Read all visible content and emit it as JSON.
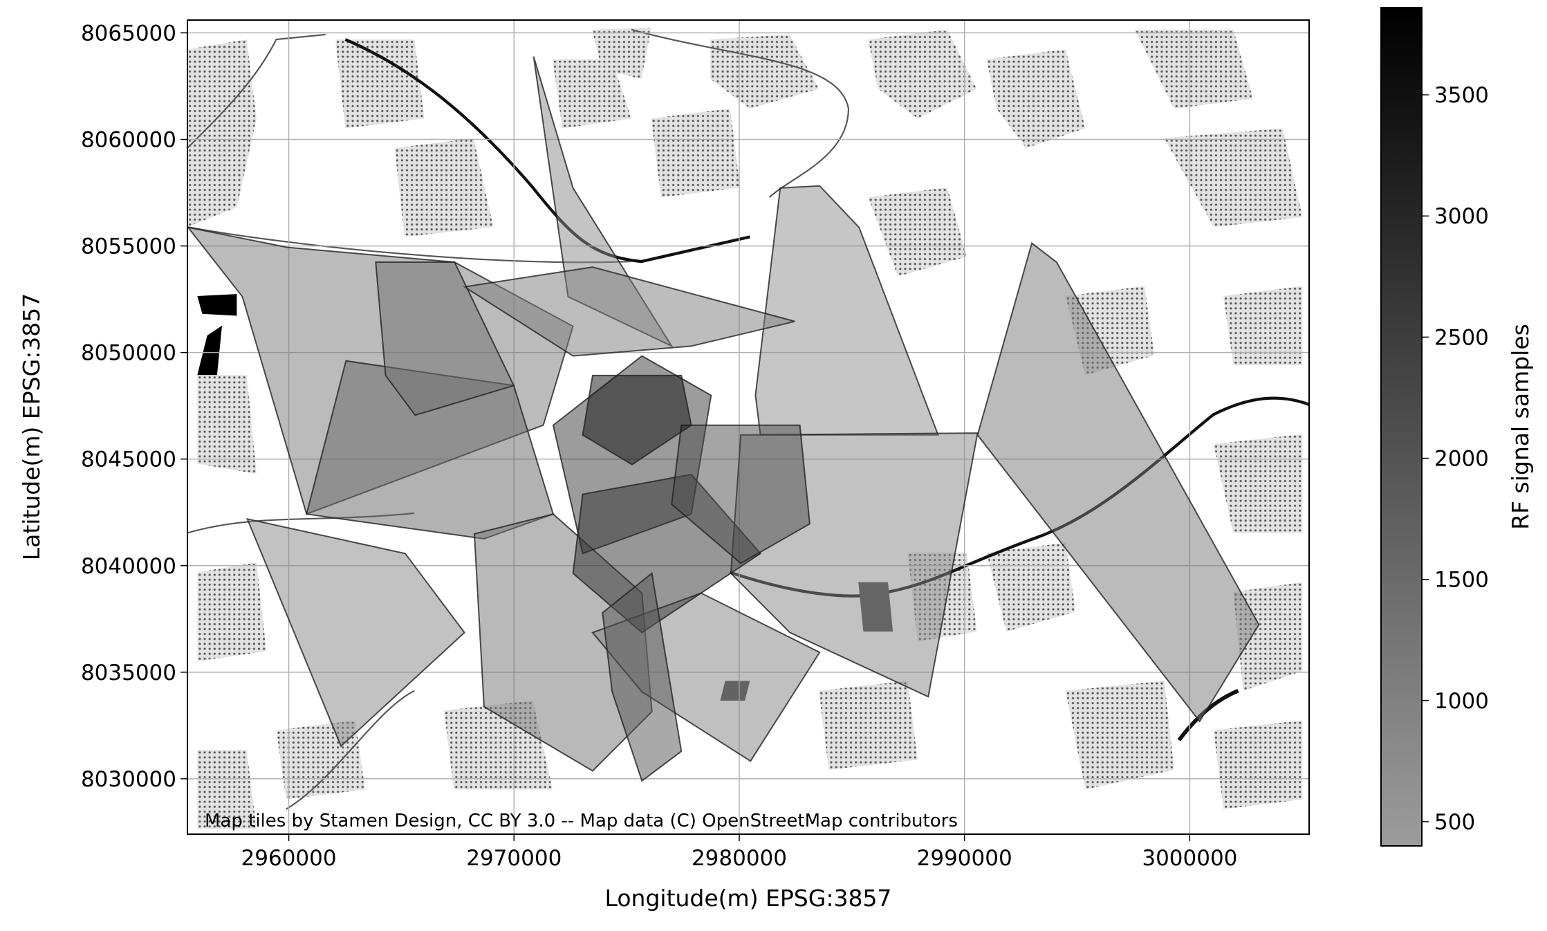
{
  "chart_data": {
    "type": "choropleth",
    "x_label": "Longitude(m) EPSG:3857",
    "y_label": "Latitude(m) EPSG:3857",
    "colorbar_label": "RF signal samples",
    "attribution": "Map tiles by Stamen Design, CC BY 3.0 -- Map data (C) OpenStreetMap contributors",
    "xlim": [
      2955500,
      3005300
    ],
    "ylim": [
      8027400,
      8065600
    ],
    "xticks": [
      2960000,
      2970000,
      2980000,
      2990000,
      3000000
    ],
    "yticks": [
      8030000,
      8035000,
      8040000,
      8045000,
      8050000,
      8055000,
      8060000,
      8065000
    ],
    "clim": [
      400,
      3860
    ],
    "cticks": [
      500,
      1000,
      1500,
      2000,
      2500,
      3000,
      3500
    ],
    "colormap": [
      "#9c9c9c",
      "#000000"
    ],
    "alpha": 0.5,
    "grid": true,
    "polygons": [
      {
        "value": 1200,
        "x": [
          2992990,
          2994090,
          3003070,
          3000440,
          2990580
        ],
        "y": [
          8055130,
          8054240,
          8037230,
          8032690,
          8046130
        ]
      },
      {
        "value": 700,
        "x": [
          2981820,
          2983570,
          2985320,
          2988830,
          2980940,
          2980720
        ],
        "y": [
          8057720,
          8057820,
          8055870,
          8046130,
          8046130,
          8047990
        ]
      },
      {
        "value": 900,
        "x": [
          2980070,
          2990580,
          2988390,
          2982250,
          2979630
        ],
        "y": [
          8046130,
          8046220,
          8033850,
          8036860,
          8039640
        ]
      },
      {
        "value": 1200,
        "x": [
          2955530,
          2959910,
          2967360,
          2972620,
          2971300,
          2960790,
          2957940
        ],
        "y": [
          8055870,
          8054940,
          8054240,
          8051230,
          8046590,
          8042420,
          8052620
        ]
      },
      {
        "value": 1600,
        "x": [
          2962540,
          2969990,
          2971740,
          2968670,
          2960790
        ],
        "y": [
          8049610,
          8048450,
          8042420,
          8041260,
          8042420
        ]
      },
      {
        "value": 900,
        "x": [
          2958160,
          2965170,
          2967800,
          2962320
        ],
        "y": [
          8042190,
          8040570,
          8036860,
          8031530
        ]
      },
      {
        "value": 800,
        "x": [
          2970870,
          2972620,
          2977000,
          2972400
        ],
        "y": [
          8063890,
          8057720,
          8050300,
          8052620
        ]
      },
      {
        "value": 1300,
        "x": [
          2968240,
          2971740,
          2975680,
          2976120,
          2973490,
          2968670
        ],
        "y": [
          8041490,
          8042420,
          8038710,
          8033150,
          8030370,
          8033380
        ]
      },
      {
        "value": 1000,
        "x": [
          2973490,
          2978310,
          2983570,
          2980500,
          2975680
        ],
        "y": [
          8036860,
          8038710,
          8035930,
          8030830,
          8034080
        ]
      },
      {
        "value": 1100,
        "x": [
          2967800,
          2973490,
          2982470,
          2977870,
          2972620
        ],
        "y": [
          8053080,
          8054010,
          8051460,
          8050300,
          8049840
        ]
      },
      {
        "value": 1400,
        "x": [
          2963860,
          2967360,
          2969990,
          2965610,
          2964300
        ],
        "y": [
          8054240,
          8054240,
          8048450,
          8047060,
          8048920
        ]
      },
      {
        "value": 2600,
        "x": [
          2971740,
          2975680,
          2978750,
          2977870,
          2973050
        ],
        "y": [
          8046590,
          8049840,
          8047990,
          8042420,
          8040570
        ]
      },
      {
        "value": 2800,
        "x": [
          2973050,
          2977870,
          2980940,
          2975680,
          2972620
        ],
        "y": [
          8043350,
          8044280,
          8040570,
          8036860,
          8039640
        ]
      },
      {
        "value": 2200,
        "x": [
          2977430,
          2982690,
          2983130,
          2980070,
          2977000
        ],
        "y": [
          8046590,
          8046590,
          8041960,
          8040110,
          8042880
        ]
      },
      {
        "value": 2000,
        "x": [
          2973930,
          2976120,
          2977430,
          2975680,
          2974360
        ],
        "y": [
          8037790,
          8039640,
          8031290,
          8029900,
          8034080
        ]
      },
      {
        "value": 3500,
        "x": [
          2973490,
          2977430,
          2977870,
          2975240,
          2973050
        ],
        "y": [
          8048920,
          8048920,
          8046590,
          8044740,
          8046130
        ]
      }
    ]
  }
}
